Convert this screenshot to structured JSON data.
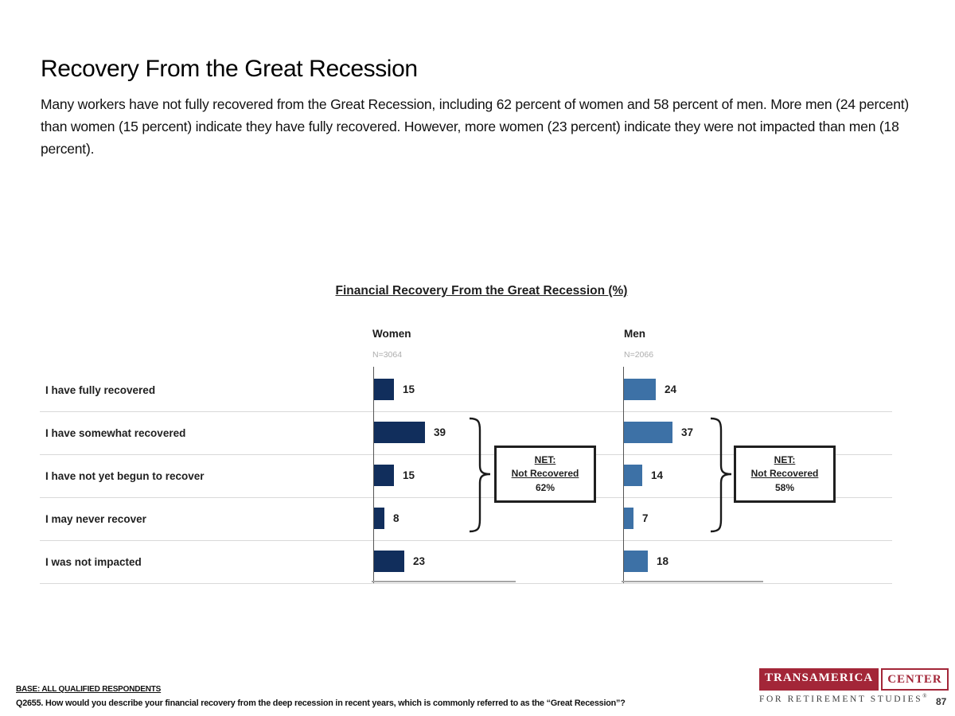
{
  "slide": {
    "title": "Recovery From the Great Recession",
    "description": "Many workers have not fully recovered from the Great Recession, including 62 percent of women and 58 percent of men. More men (24 percent) than women (15 percent) indicate they have fully recovered. However, more women (23 percent) indicate they were not impacted than men (18 percent)."
  },
  "chart_data": {
    "type": "bar",
    "orientation": "horizontal",
    "title": "Financial Recovery From the Great Recession (%)",
    "categories": [
      "I have fully recovered",
      "I have somewhat recovered",
      "I have not yet begun to recover",
      "I may never recover",
      "I was not impacted"
    ],
    "series": [
      {
        "name": "Women",
        "n_label": "N=3064",
        "color": "#112E5C",
        "values": [
          15,
          39,
          15,
          8,
          23
        ],
        "net": {
          "line1": "NET:",
          "line2": "Not Recovered",
          "value": "62%"
        }
      },
      {
        "name": "Men",
        "n_label": "N=2066",
        "color": "#3D71A6",
        "values": [
          24,
          37,
          14,
          7,
          18
        ],
        "net": {
          "line1": "NET:",
          "line2": "Not Recovered",
          "value": "58%"
        }
      }
    ],
    "net_bracket_rows": [
      1,
      2,
      3
    ],
    "xlim": [
      0,
      100
    ],
    "grid": false,
    "value_labels": true
  },
  "footer": {
    "base_label": "BASE: ALL QUALIFIED RESPONDENTS",
    "question": "Q2655. How would you describe your financial recovery from the deep recession in recent years, which is commonly referred to as the “Great Recession”?",
    "page_number": "87"
  },
  "logo": {
    "word1": "TRANSAMERICA",
    "word2": "CENTER",
    "tagline": "FOR RETIREMENT STUDIES",
    "registered": "®",
    "brand_color": "#A32638"
  }
}
